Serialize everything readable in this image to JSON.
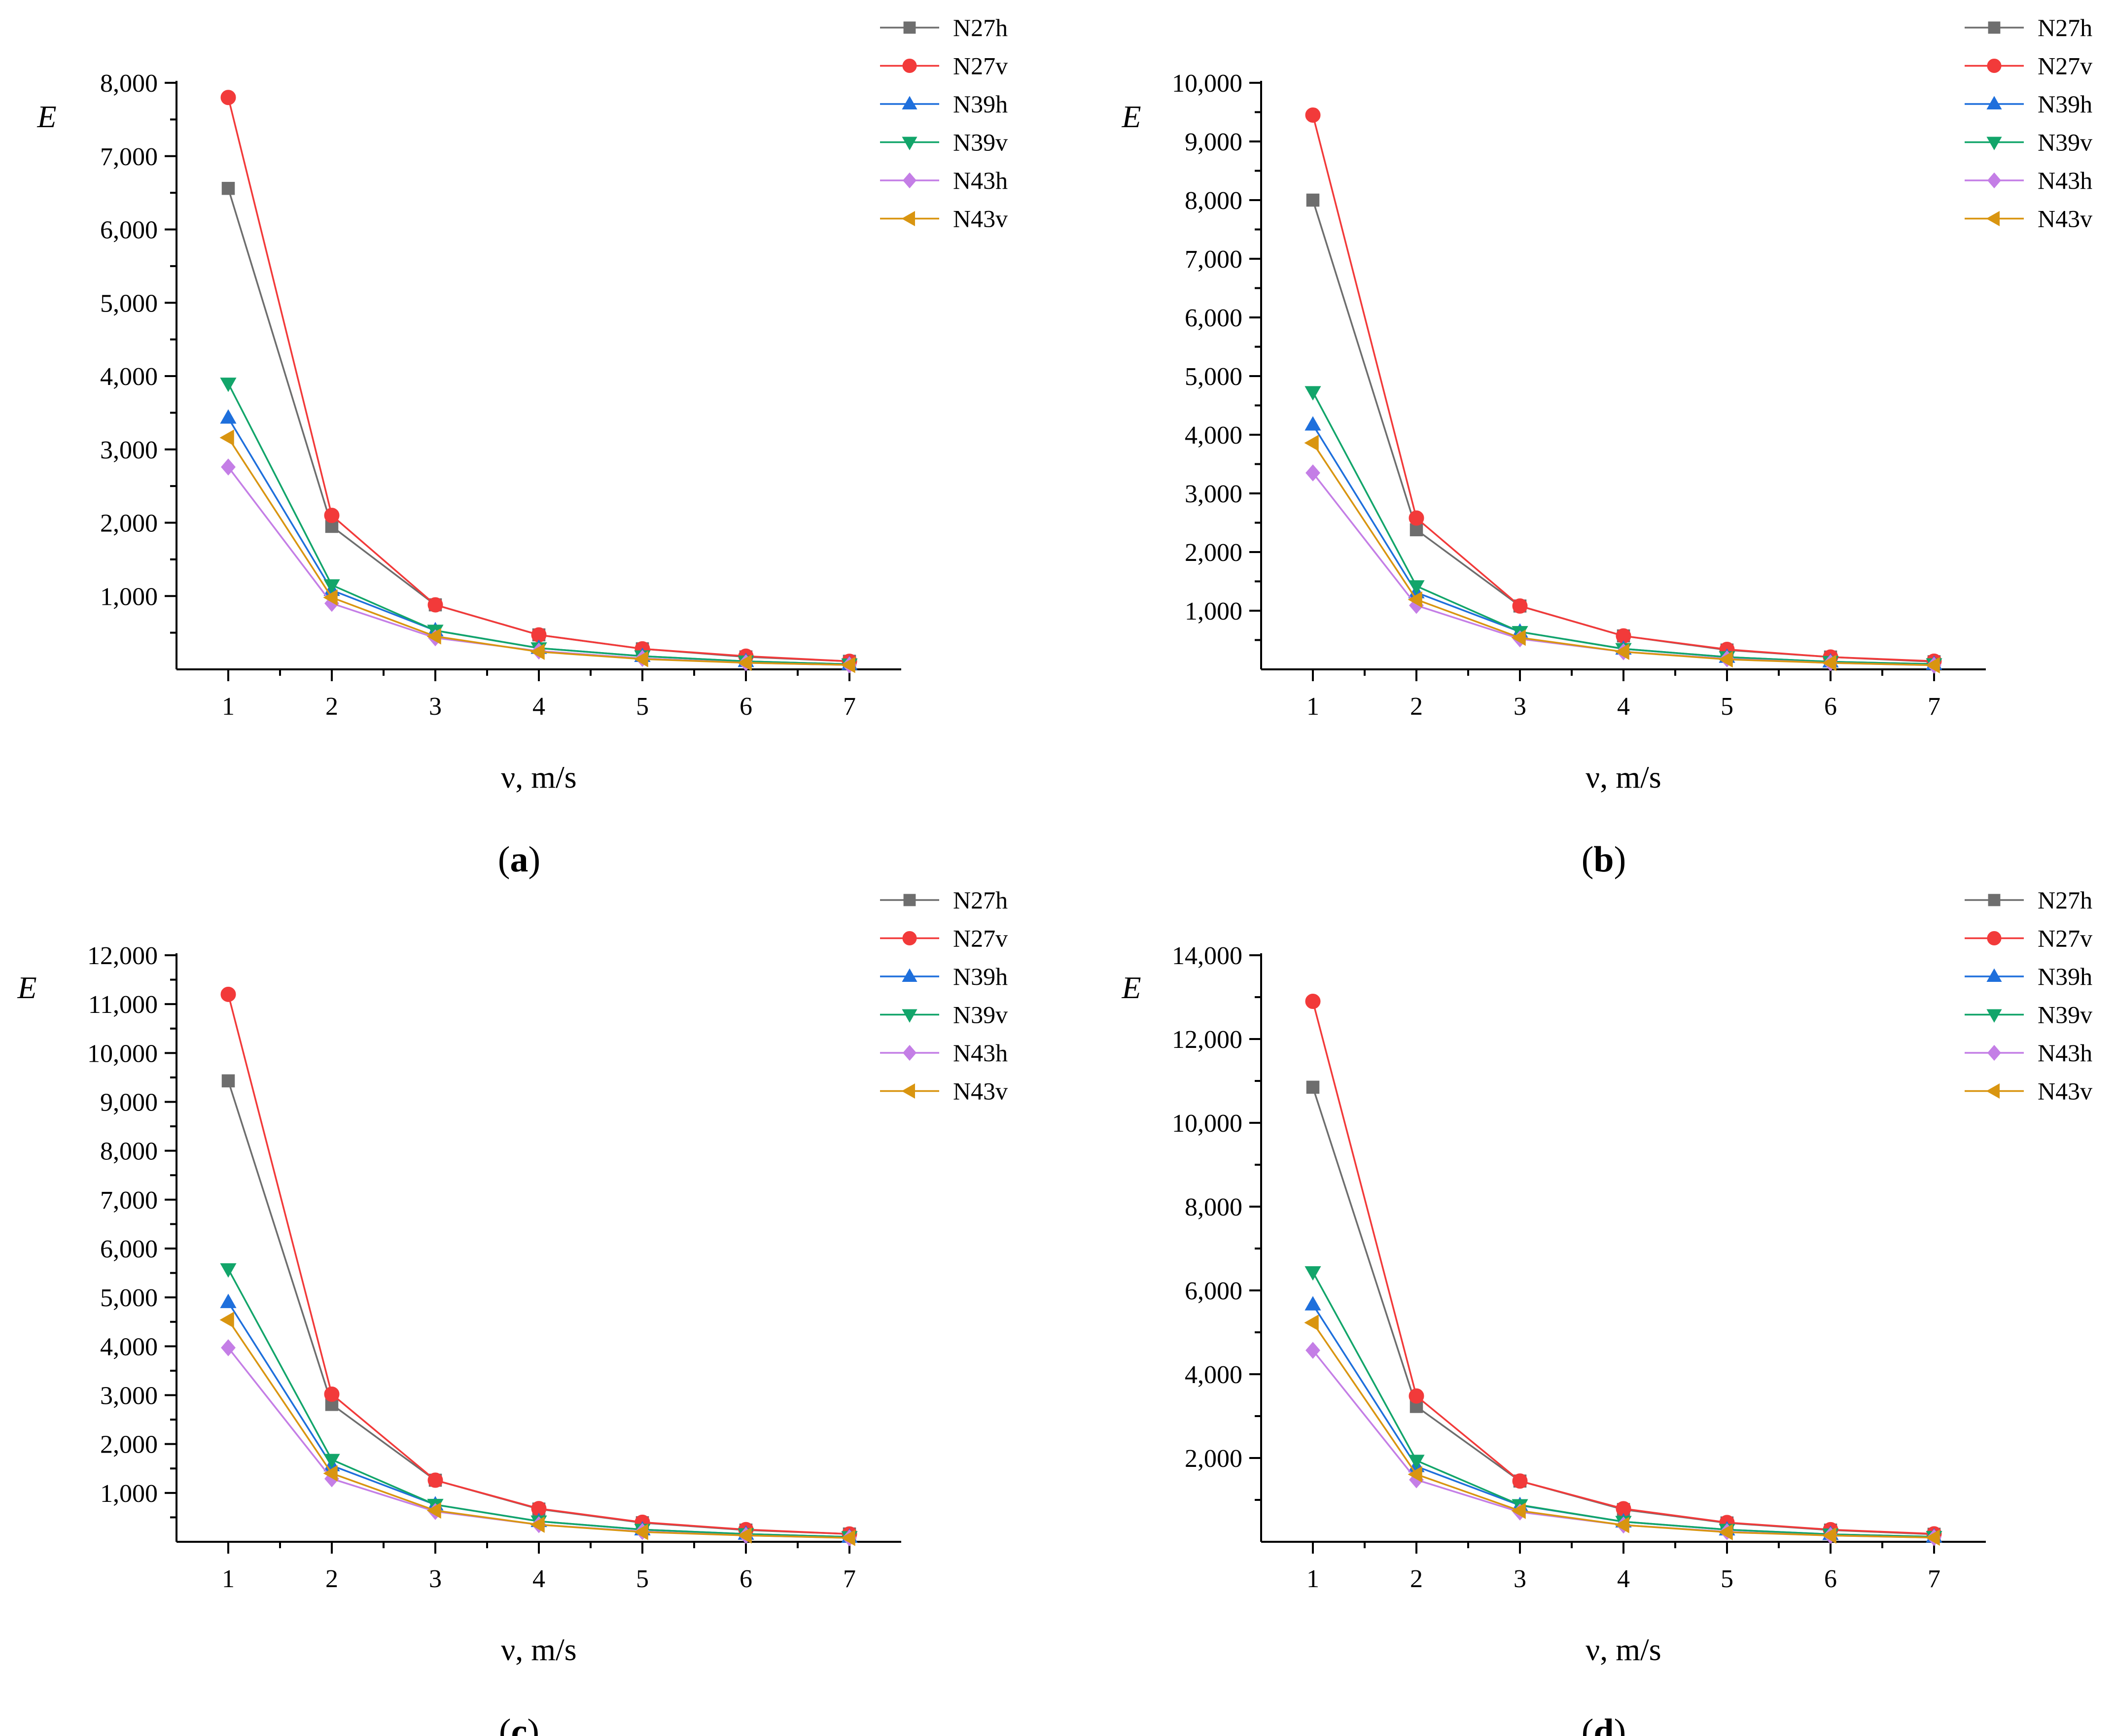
{
  "figure": {
    "colors": {
      "N27h": "#6e6e6e",
      "N27v": "#f23a3a",
      "N39h": "#1e6fdc",
      "N39v": "#12a56a",
      "N43h": "#c47ee6",
      "N43v": "#d99510"
    },
    "markers": {
      "N27h": "square",
      "N27v": "circle",
      "N39h": "triangle-up",
      "N39v": "triangle-down",
      "N43h": "diamond",
      "N43v": "triangle-left"
    }
  },
  "chart_data": [
    {
      "type": "line",
      "caption": "(a)",
      "caption_letter": "a",
      "xlabel": "ν, m/s",
      "ylabel": "E",
      "x": [
        1,
        2,
        3,
        4,
        5,
        6,
        7
      ],
      "xlim": [
        0.5,
        7.5
      ],
      "ylim": [
        0,
        8000
      ],
      "yticks": [
        1000,
        2000,
        3000,
        4000,
        5000,
        6000,
        7000,
        8000
      ],
      "ytick_labels": [
        "1,000",
        "2,000",
        "3,000",
        "4,000",
        "5,000",
        "6,000",
        "7,000",
        "8,000"
      ],
      "xtick_labels": [
        "1",
        "2",
        "3",
        "4",
        "5",
        "6",
        "7"
      ],
      "legend_position": "top-right",
      "series": [
        {
          "name": "N27h",
          "values": [
            6560,
            1950,
            880,
            470,
            280,
            170,
            110
          ]
        },
        {
          "name": "N27v",
          "values": [
            7800,
            2100,
            880,
            470,
            280,
            180,
            110
          ]
        },
        {
          "name": "N39h",
          "values": [
            3430,
            1080,
            530,
            290,
            180,
            110,
            70
          ]
        },
        {
          "name": "N39v",
          "values": [
            3900,
            1150,
            530,
            290,
            180,
            110,
            70
          ]
        },
        {
          "name": "N43h",
          "values": [
            2760,
            900,
            430,
            250,
            150,
            90,
            60
          ]
        },
        {
          "name": "N43v",
          "values": [
            3160,
            980,
            450,
            240,
            140,
            90,
            60
          ]
        }
      ]
    },
    {
      "type": "line",
      "caption": "(b)",
      "caption_letter": "b",
      "xlabel": "ν, m/s",
      "ylabel": "E",
      "x": [
        1,
        2,
        3,
        4,
        5,
        6,
        7
      ],
      "xlim": [
        0.5,
        7.5
      ],
      "ylim": [
        0,
        10000
      ],
      "yticks": [
        1000,
        2000,
        3000,
        4000,
        5000,
        6000,
        7000,
        8000,
        9000,
        10000
      ],
      "ytick_labels": [
        "1,000",
        "2,000",
        "3,000",
        "4,000",
        "5,000",
        "6,000",
        "7,000",
        "8,000",
        "9,000",
        "10,000"
      ],
      "xtick_labels": [
        "1",
        "2",
        "3",
        "4",
        "5",
        "6",
        "7"
      ],
      "legend_position": "top-right",
      "series": [
        {
          "name": "N27h",
          "values": [
            8000,
            2380,
            1080,
            570,
            330,
            210,
            130
          ]
        },
        {
          "name": "N27v",
          "values": [
            9450,
            2580,
            1080,
            570,
            340,
            210,
            140
          ]
        },
        {
          "name": "N39h",
          "values": [
            4170,
            1310,
            640,
            350,
            210,
            130,
            90
          ]
        },
        {
          "name": "N39v",
          "values": [
            4730,
            1420,
            640,
            350,
            210,
            130,
            90
          ]
        },
        {
          "name": "N43h",
          "values": [
            3350,
            1090,
            520,
            300,
            180,
            110,
            70
          ]
        },
        {
          "name": "N43v",
          "values": [
            3860,
            1190,
            540,
            300,
            170,
            110,
            70
          ]
        }
      ]
    },
    {
      "type": "line",
      "caption": "(c)",
      "caption_letter": "c",
      "xlabel": "ν, m/s",
      "ylabel": "E",
      "x": [
        1,
        2,
        3,
        4,
        5,
        6,
        7
      ],
      "xlim": [
        0.5,
        7.5
      ],
      "ylim": [
        0,
        12000
      ],
      "yticks": [
        1000,
        2000,
        3000,
        4000,
        5000,
        6000,
        7000,
        8000,
        9000,
        10000,
        11000,
        12000
      ],
      "ytick_labels": [
        "1,000",
        "2,000",
        "3,000",
        "4,000",
        "5,000",
        "6,000",
        "7,000",
        "8,000",
        "9,000",
        "10,000",
        "11,000",
        "12,000"
      ],
      "xtick_labels": [
        "1",
        "2",
        "3",
        "4",
        "5",
        "6",
        "7"
      ],
      "legend_position": "top-right",
      "series": [
        {
          "name": "N27h",
          "values": [
            9430,
            2810,
            1260,
            670,
            390,
            240,
            160
          ]
        },
        {
          "name": "N27v",
          "values": [
            11200,
            3020,
            1260,
            680,
            400,
            250,
            160
          ]
        },
        {
          "name": "N39h",
          "values": [
            4900,
            1560,
            760,
            420,
            250,
            160,
            100
          ]
        },
        {
          "name": "N39v",
          "values": [
            5580,
            1680,
            760,
            420,
            250,
            160,
            100
          ]
        },
        {
          "name": "N43h",
          "values": [
            3970,
            1290,
            620,
            350,
            210,
            130,
            80
          ]
        },
        {
          "name": "N43v",
          "values": [
            4540,
            1400,
            640,
            350,
            200,
            130,
            80
          ]
        }
      ]
    },
    {
      "type": "line",
      "caption": "(d)",
      "caption_letter": "d",
      "xlabel": "ν, m/s",
      "ylabel": "E",
      "x": [
        1,
        2,
        3,
        4,
        5,
        6,
        7
      ],
      "xlim": [
        0.5,
        7.5
      ],
      "ylim": [
        0,
        14000
      ],
      "yticks": [
        2000,
        4000,
        6000,
        8000,
        10000,
        12000,
        14000
      ],
      "ytick_labels": [
        "2,000",
        "4,000",
        "6,000",
        "8,000",
        "10,000",
        "12,000",
        "14,000"
      ],
      "xtick_labels": [
        "1",
        "2",
        "3",
        "4",
        "5",
        "6",
        "7"
      ],
      "legend_position": "top-right",
      "series": [
        {
          "name": "N27h",
          "values": [
            10850,
            3230,
            1450,
            770,
            450,
            280,
            180
          ]
        },
        {
          "name": "N27v",
          "values": [
            12900,
            3480,
            1450,
            790,
            460,
            290,
            190
          ]
        },
        {
          "name": "N39h",
          "values": [
            5660,
            1800,
            870,
            480,
            290,
            180,
            120
          ]
        },
        {
          "name": "N39v",
          "values": [
            6440,
            1940,
            880,
            480,
            290,
            180,
            120
          ]
        },
        {
          "name": "N43h",
          "values": [
            4570,
            1480,
            710,
            400,
            240,
            150,
            100
          ]
        },
        {
          "name": "N43v",
          "values": [
            5230,
            1610,
            740,
            400,
            230,
            150,
            100
          ]
        }
      ]
    }
  ]
}
